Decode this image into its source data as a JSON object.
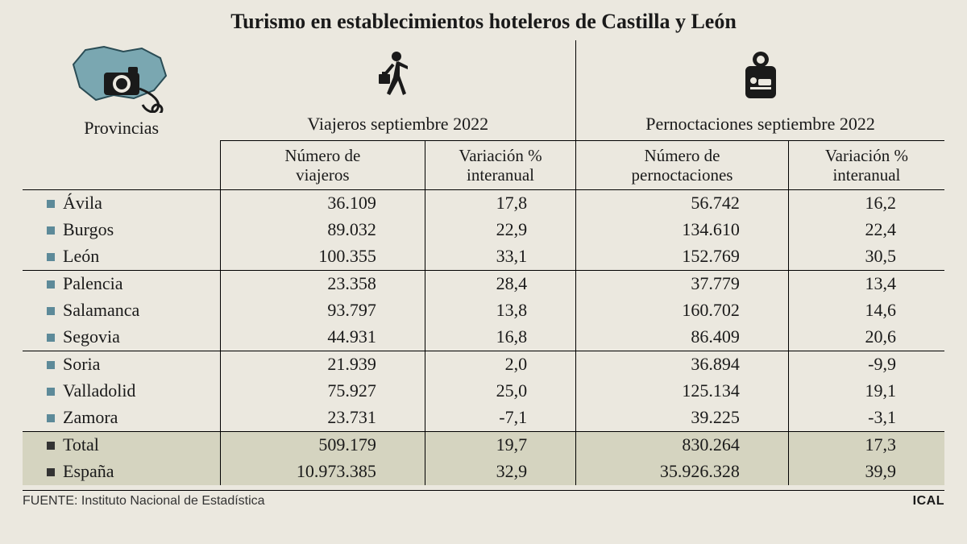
{
  "title": "Turismo en establecimientos hoteleros de Castilla y León",
  "headers": {
    "provincias": "Provincias",
    "group1": "Viajeros septiembre 2022",
    "group2": "Pernoctaciones septiembre 2022",
    "sub1a_l1": "Número de",
    "sub1a_l2": "viajeros",
    "sub1b_l1": "Variación %",
    "sub1b_l2": "interanual",
    "sub2a_l1": "Número de",
    "sub2a_l2": "pernoctaciones",
    "sub2b_l1": "Variación %",
    "sub2b_l2": "interanual"
  },
  "colors": {
    "bullet": "#5d8a99",
    "bullet_total": "#333333",
    "total_bg": "#d5d4c0",
    "page_bg": "#ebe8df",
    "map_fill": "#7aa7b1",
    "map_stroke": "#2a4c55",
    "icon_dark": "#1a1a1a"
  },
  "rows": [
    {
      "prov": "Ávila",
      "v": "36.109",
      "vv": "17,8",
      "p": "56.742",
      "pv": "16,2"
    },
    {
      "prov": "Burgos",
      "v": "89.032",
      "vv": "22,9",
      "p": "134.610",
      "pv": "22,4"
    },
    {
      "prov": "León",
      "v": "100.355",
      "vv": "33,1",
      "p": "152.769",
      "pv": "30,5"
    },
    {
      "prov": "Palencia",
      "v": "23.358",
      "vv": "28,4",
      "p": "37.779",
      "pv": "13,4"
    },
    {
      "prov": "Salamanca",
      "v": "93.797",
      "vv": "13,8",
      "p": "160.702",
      "pv": "14,6"
    },
    {
      "prov": "Segovia",
      "v": "44.931",
      "vv": "16,8",
      "p": "86.409",
      "pv": "20,6"
    },
    {
      "prov": "Soria",
      "v": "21.939",
      "vv": "2,0",
      "p": "36.894",
      "pv": "-9,9"
    },
    {
      "prov": "Valladolid",
      "v": "75.927",
      "vv": "25,0",
      "p": "125.134",
      "pv": "19,1"
    },
    {
      "prov": "Zamora",
      "v": "23.731",
      "vv": "-7,1",
      "p": "39.225",
      "pv": "-3,1"
    }
  ],
  "totals": [
    {
      "prov": "Total",
      "v": "509.179",
      "vv": "19,7",
      "p": "830.264",
      "pv": "17,3"
    },
    {
      "prov": "España",
      "v": "10.973.385",
      "vv": "32,9",
      "p": "35.926.328",
      "pv": "39,9"
    }
  ],
  "group_rules": [
    3,
    6
  ],
  "footer": {
    "source": "FUENTE: Instituto Nacional de Estadística",
    "brand": "ICAL"
  },
  "typography": {
    "title_fontsize": 26,
    "body_fontsize": 22,
    "footer_fontsize": 16
  }
}
